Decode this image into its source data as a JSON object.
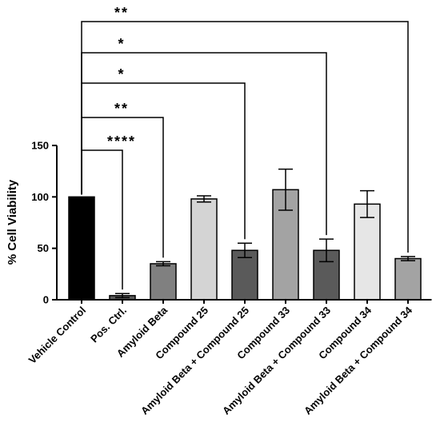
{
  "chart_data": {
    "type": "bar",
    "ylabel": "% Cell Viability",
    "xlabel": "",
    "title": "",
    "ylim": [
      0,
      150
    ],
    "yticks": [
      0,
      50,
      100,
      150
    ],
    "categories": [
      "Vehicle Control",
      "Pos. Ctrl.",
      "Amyloid Beta",
      "Compound 25",
      "Amyloid Beta + Compound 25",
      "Compound 33",
      "Amyloid Beta + Compound 33",
      "Compound 34",
      "Amyloid Beta + Compound 34"
    ],
    "values": [
      100,
      4,
      35,
      98,
      48,
      107,
      48,
      93,
      40
    ],
    "errors": [
      0,
      2,
      2,
      3,
      7,
      20,
      11,
      13,
      2
    ],
    "bar_colors": [
      "#000000",
      "#5a5a5a",
      "#808080",
      "#d4d4d4",
      "#5a5a5a",
      "#a3a3a3",
      "#5a5a5a",
      "#e6e6e6",
      "#a3a3a3"
    ],
    "significance": [
      {
        "from": 0,
        "to": 1,
        "label": "****"
      },
      {
        "from": 0,
        "to": 2,
        "label": "**"
      },
      {
        "from": 0,
        "to": 4,
        "label": "*"
      },
      {
        "from": 0,
        "to": 6,
        "label": "*"
      },
      {
        "from": 0,
        "to": 8,
        "label": "**"
      }
    ]
  }
}
